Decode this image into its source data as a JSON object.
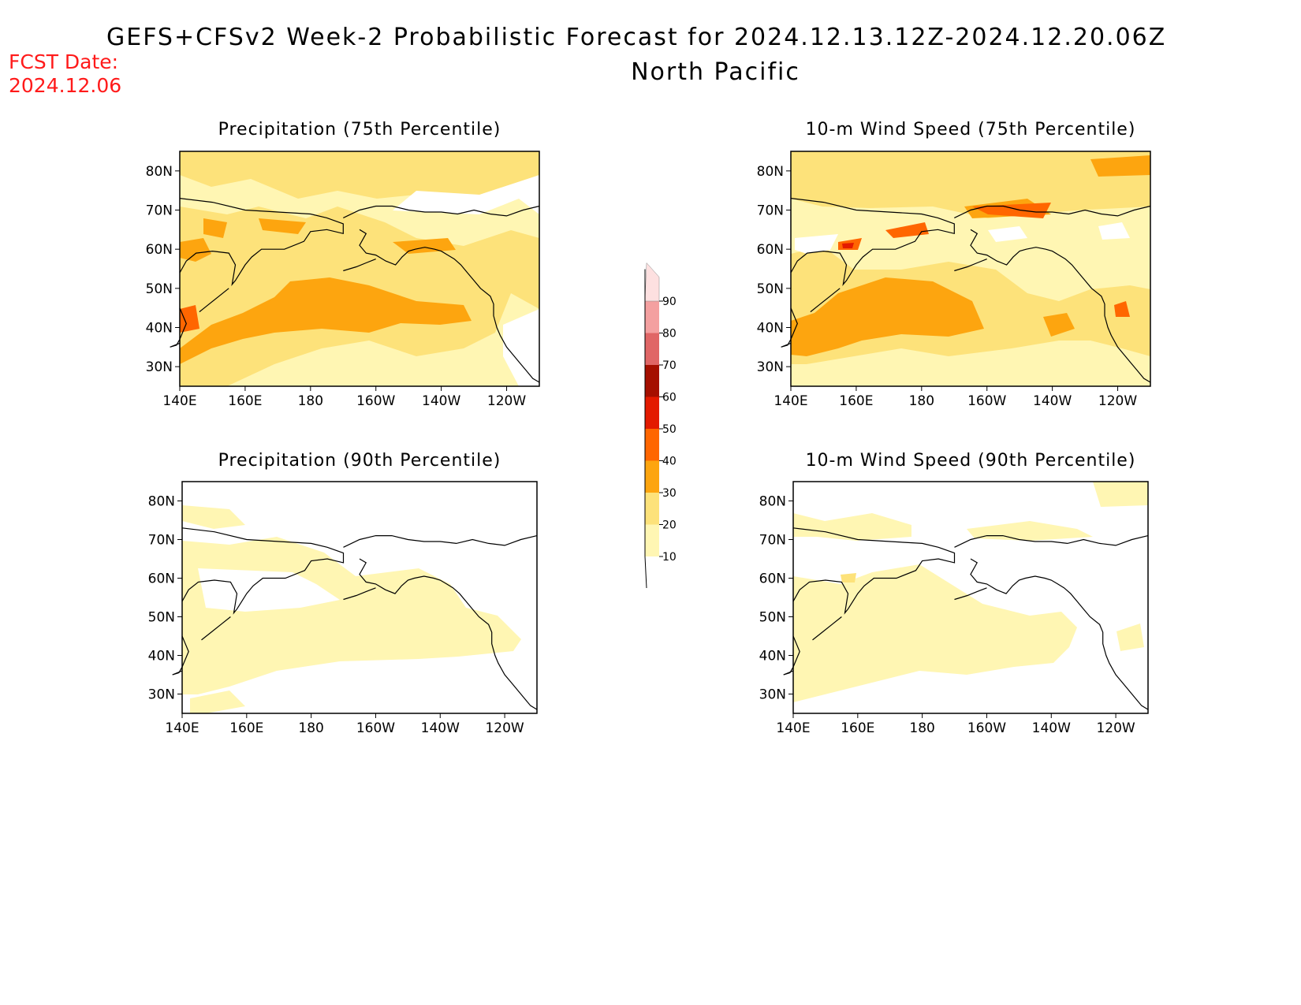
{
  "header": {
    "title": "GEFS+CFSv2 Week-2 Probabilistic Forecast for 2024.12.13.12Z-2024.12.20.06Z",
    "region": "North Pacific",
    "fcst_label": "FCST Date:",
    "fcst_date": "2024.12.06"
  },
  "map_axes": {
    "lat_ticks": [
      "80N",
      "70N",
      "60N",
      "50N",
      "40N",
      "30N"
    ],
    "lon_ticks": [
      "140E",
      "160E",
      "180",
      "160W",
      "140W",
      "120W"
    ]
  },
  "panels": [
    {
      "id": "precip-75",
      "title": "Precipitation (75th Percentile)"
    },
    {
      "id": "wind-75",
      "title": "10-m Wind Speed (75th Percentile)"
    },
    {
      "id": "precip-90",
      "title": "Precipitation (90th Percentile)"
    },
    {
      "id": "wind-90",
      "title": "10-m Wind Speed (90th Percentile)"
    }
  ],
  "colorbar": {
    "levels": [
      "10",
      "20",
      "30",
      "40",
      "50",
      "60",
      "70",
      "80",
      "90"
    ],
    "colors": [
      "#fff6b3",
      "#fde27a",
      "#fda50f",
      "#ff6600",
      "#e31a00",
      "#a50f00",
      "#e06666",
      "#f4a0a0",
      "#fde0e0"
    ]
  }
}
